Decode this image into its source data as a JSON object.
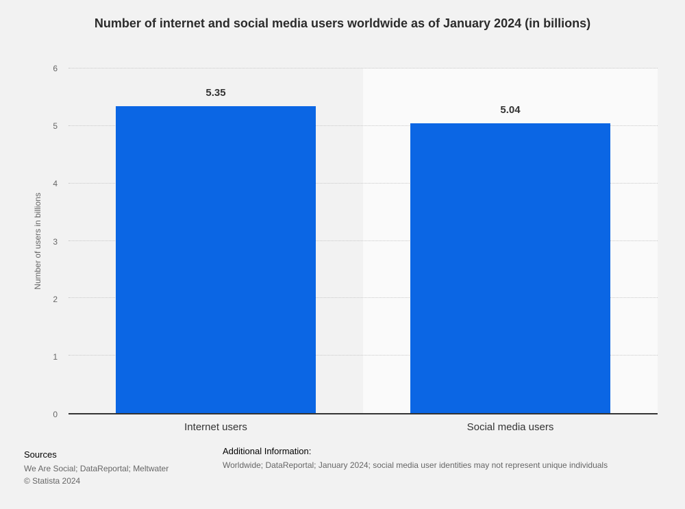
{
  "chart_data": {
    "type": "bar",
    "title": "Number of internet and social media users worldwide as of January 2024 (in billions)",
    "categories": [
      "Internet users",
      "Social media users"
    ],
    "values": [
      5.35,
      5.04
    ],
    "value_labels": [
      "5.35",
      "5.04"
    ],
    "xlabel": "",
    "ylabel": "Number of users in billions",
    "ylim": [
      0,
      6
    ],
    "yticks": [
      0,
      1,
      2,
      3,
      4,
      5,
      6
    ],
    "grid": "horizontal-dotted",
    "legend": "none",
    "bar_color": "#0b66e4",
    "alt_column_color": "#fafafa",
    "background_color": "#f2f2f2",
    "gridline_color": "#c8c8c8",
    "axis_line_color": "#333333"
  },
  "footer": {
    "sources_label": "Sources",
    "sources_text": "We Are Social; DataReportal; Meltwater",
    "copyright": "© Statista 2024",
    "additional_info_label": "Additional Information:",
    "additional_info_text": "Worldwide; DataReportal; January 2024; social media user identities may not represent unique individuals"
  }
}
